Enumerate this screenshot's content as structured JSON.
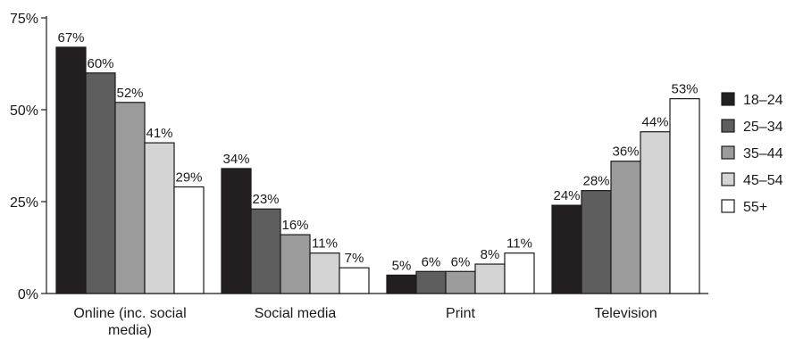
{
  "chart_data": {
    "type": "bar",
    "categories": [
      "Online (inc. social media)",
      "Social media",
      "Print",
      "Television"
    ],
    "category_label_lines": [
      [
        "Online (inc. social",
        "media)"
      ],
      [
        "Social media"
      ],
      [
        "Print"
      ],
      [
        "Television"
      ]
    ],
    "series": [
      {
        "name": "18–24",
        "color": "#231f20",
        "values": [
          67,
          34,
          5,
          24
        ],
        "labels": [
          "67%",
          "34%",
          "5%",
          "24%"
        ]
      },
      {
        "name": "25–34",
        "color": "#5e5e5e",
        "values": [
          60,
          23,
          6,
          28
        ],
        "labels": [
          "60%",
          "23%",
          "6%",
          "28%"
        ]
      },
      {
        "name": "35–44",
        "color": "#9b9b9b",
        "values": [
          52,
          16,
          6,
          36
        ],
        "labels": [
          "52%",
          "16%",
          "6%",
          "36%"
        ]
      },
      {
        "name": "45–54",
        "color": "#d4d4d4",
        "values": [
          41,
          11,
          8,
          44
        ],
        "labels": [
          "41%",
          "11%",
          "8%",
          "44%"
        ]
      },
      {
        "name": "55+",
        "color": "#ffffff",
        "values": [
          29,
          7,
          11,
          53
        ],
        "labels": [
          "29%",
          "7%",
          "11%",
          "53%"
        ]
      }
    ],
    "ylim": [
      0,
      75
    ],
    "yticks": [
      0,
      25,
      50,
      75
    ],
    "ytick_labels": [
      "0%",
      "25%",
      "50%",
      "75%"
    ],
    "title": "",
    "xlabel": "",
    "ylabel": "",
    "legend": "right",
    "grid": false
  }
}
